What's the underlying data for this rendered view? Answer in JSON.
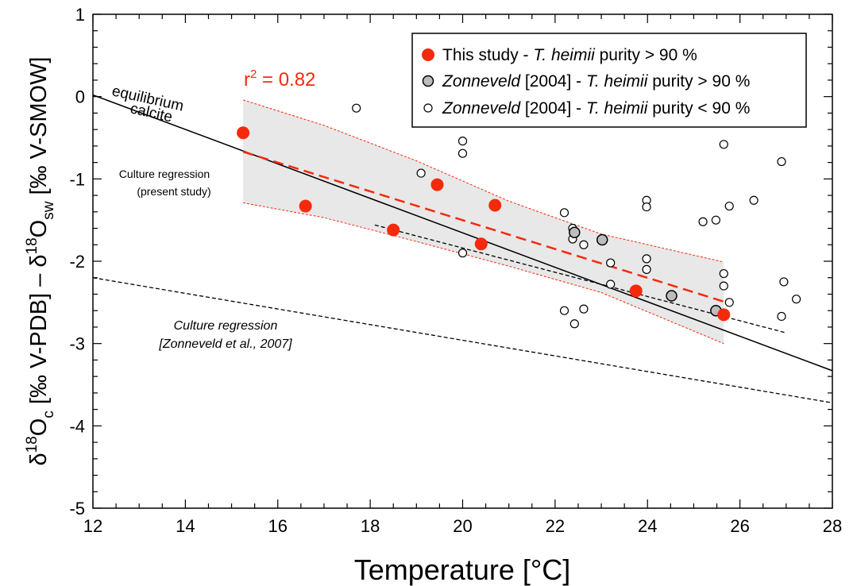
{
  "chart_data": {
    "type": "scatter",
    "xlabel": "Temperature [°C]",
    "ylabel": {
      "p1": "δ",
      "p2": "18",
      "p3": "O",
      "p4": "c",
      "p5": " [‰ V-PDB] – ",
      "p6": "δ",
      "p7": "18",
      "p8": "O",
      "p9": "sw",
      "p10": " [‰ V-SMOW]"
    },
    "xlim": [
      12,
      28
    ],
    "ylim": [
      -5,
      1
    ],
    "xticks": [
      "12",
      "14",
      "16",
      "18",
      "20",
      "22",
      "24",
      "26",
      "28"
    ],
    "yticks": [
      "-5",
      "-4",
      "-3",
      "-2",
      "-1",
      "0",
      "1"
    ],
    "grid": false,
    "legend_position": "top-right",
    "legend": {
      "entry1": {
        "a": "This study - ",
        "b": "T. heimii",
        "c": " purity  > 90 %"
      },
      "entry2": {
        "a": "Zonneveld",
        "b": " [2004] - ",
        "c": "T. heimii",
        "d": " purity  > 90 %"
      },
      "entry3": {
        "a": "Zonneveld",
        "b": " [2004] - ",
        "c": "T. heimii",
        "d": " purity  < 90 %"
      }
    },
    "annotations": {
      "r2": {
        "a": "r",
        "b": "2",
        "c": " = 0.82"
      },
      "equilibrium_1": "equilibrium",
      "equilibrium_2": "calcite",
      "culture_present_1": "Culture regression",
      "culture_present_2": "(present study)",
      "culture_zonneveld_1": "Culture regression",
      "culture_zonneveld_2": "[Zonneveld et al., 2007]"
    },
    "colors": {
      "this_study": "#f42a0c",
      "zonneveld_gt90": "#bdbdbd",
      "confidence_band": "#e8e8e8"
    },
    "series": [
      {
        "name": "This study - T. heimii purity > 90 %",
        "marker": "filled-red",
        "points": [
          [
            15.25,
            -0.44
          ],
          [
            16.6,
            -1.33
          ],
          [
            18.5,
            -1.62
          ],
          [
            19.45,
            -1.07
          ],
          [
            20.4,
            -1.79
          ],
          [
            20.7,
            -1.32
          ],
          [
            23.75,
            -2.36
          ],
          [
            25.65,
            -2.65
          ]
        ]
      },
      {
        "name": "Zonneveld [2004] - T. heimii purity > 90 %",
        "marker": "filled-grey",
        "points": [
          [
            22.42,
            -1.65
          ],
          [
            23.02,
            -1.74
          ],
          [
            24.52,
            -2.42
          ],
          [
            25.48,
            -2.6
          ]
        ]
      },
      {
        "name": "Zonneveld [2004] - T. heimii purity < 90 %",
        "marker": "open",
        "points": [
          [
            17.7,
            -0.14
          ],
          [
            19.1,
            -0.93
          ],
          [
            20.0,
            -0.54
          ],
          [
            20.0,
            -0.69
          ],
          [
            20.0,
            -1.9
          ],
          [
            22.2,
            -1.41
          ],
          [
            22.2,
            -2.6
          ],
          [
            22.38,
            -1.6
          ],
          [
            22.38,
            -1.73
          ],
          [
            22.42,
            -2.76
          ],
          [
            22.62,
            -1.8
          ],
          [
            22.62,
            -2.58
          ],
          [
            23.2,
            -2.02
          ],
          [
            23.2,
            -2.28
          ],
          [
            23.98,
            -1.26
          ],
          [
            23.98,
            -1.34
          ],
          [
            23.98,
            -1.97
          ],
          [
            23.98,
            -2.1
          ],
          [
            25.2,
            -1.52
          ],
          [
            25.48,
            -1.5
          ],
          [
            25.65,
            -0.58
          ],
          [
            25.65,
            -2.15
          ],
          [
            25.65,
            -2.3
          ],
          [
            25.77,
            -1.33
          ],
          [
            25.77,
            -2.5
          ],
          [
            26.3,
            -1.26
          ],
          [
            26.9,
            -0.79
          ],
          [
            26.95,
            -2.25
          ],
          [
            26.9,
            -2.67
          ],
          [
            27.22,
            -2.46
          ]
        ]
      }
    ],
    "lines": [
      {
        "name": "equilibrium-calcite",
        "style": "solid",
        "color": "#000000",
        "points": [
          [
            12,
            0.02
          ],
          [
            28,
            -3.33
          ]
        ]
      },
      {
        "name": "culture-regression-present-study",
        "style": "dashed",
        "color": "#000000",
        "points": [
          [
            18.1,
            -1.56
          ],
          [
            27.0,
            -2.87
          ]
        ]
      },
      {
        "name": "culture-regression-zonneveld-2007",
        "style": "dashed",
        "color": "#000000",
        "points": [
          [
            12,
            -2.2
          ],
          [
            28,
            -3.72
          ]
        ]
      },
      {
        "name": "this-study-regression",
        "style": "dashed",
        "color": "#f42a0c",
        "points": [
          [
            15.25,
            -0.67
          ],
          [
            25.65,
            -2.49
          ]
        ]
      }
    ],
    "confidence_band": {
      "upper": [
        [
          15.25,
          -0.04
        ],
        [
          17.0,
          -0.35
        ],
        [
          19.0,
          -0.78
        ],
        [
          21.0,
          -1.27
        ],
        [
          23.0,
          -1.67
        ],
        [
          25.65,
          -2.01
        ]
      ],
      "lower": [
        [
          15.25,
          -1.29
        ],
        [
          17.0,
          -1.47
        ],
        [
          19.0,
          -1.76
        ],
        [
          21.0,
          -2.06
        ],
        [
          23.0,
          -2.38
        ],
        [
          25.65,
          -3.0
        ]
      ]
    }
  }
}
